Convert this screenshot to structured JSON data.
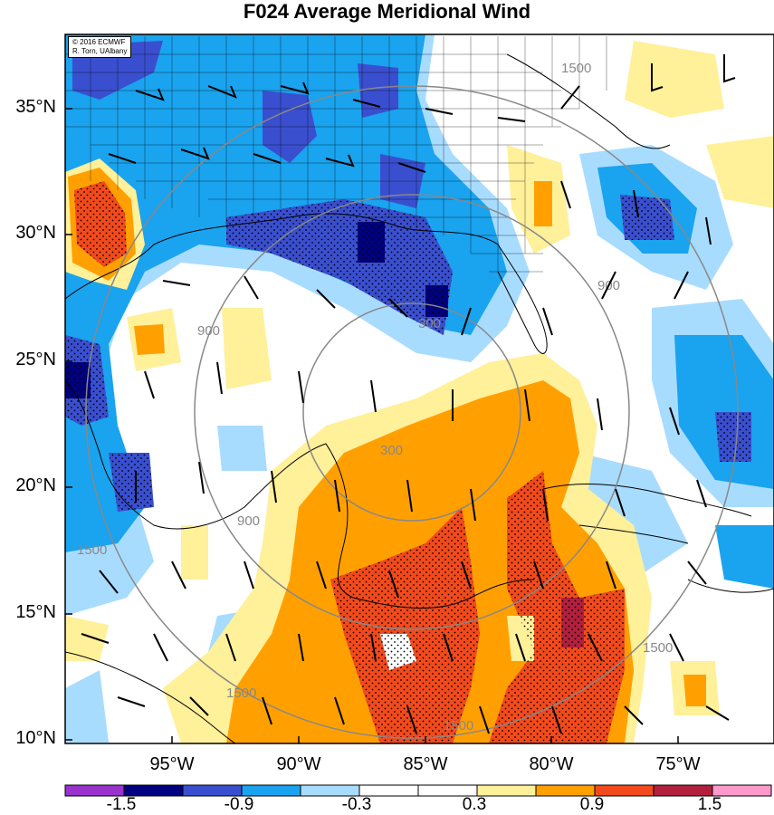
{
  "title": "F024 Average Meridional Wind",
  "credit": {
    "line1": "© 2016 ECMWF",
    "line2": "R. Torn, UAlbany"
  },
  "lat_labels": [
    "35°N",
    "30°N",
    "25°N",
    "20°N",
    "15°N",
    "10°N"
  ],
  "lon_labels": [
    "95°W",
    "90°W",
    "85°W",
    "80°W",
    "75°W"
  ],
  "colorbar": {
    "labels": [
      "-1.5",
      "-0.9",
      "-0.3",
      "0.3",
      "0.9",
      "1.5"
    ],
    "colors": [
      "#9933cc",
      "#000080",
      "#3a4fcf",
      "#1aa3ee",
      "#a8dcff",
      "#ffffff",
      "#ffffff",
      "#fff09a",
      "#ffa000",
      "#f24a1c",
      "#b2203e",
      "#ff99cc"
    ]
  },
  "range_ring_labels": [
    "300",
    "300",
    "900",
    "900",
    "900",
    "1500",
    "1500",
    "1500",
    "1500",
    "1500"
  ]
}
